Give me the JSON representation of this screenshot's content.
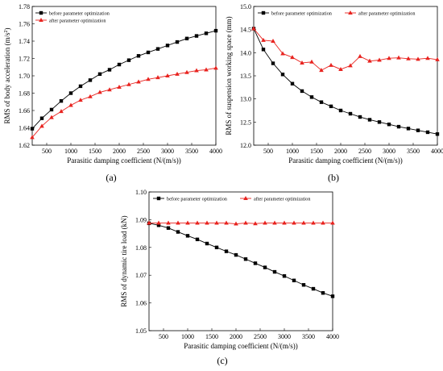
{
  "chart_data": [
    {
      "type": "line",
      "panel_label": "(a)",
      "xlabel": "Parasitic damping coefficient (N/(m/s))",
      "ylabel_main": "RMS of body acceleration (m/s",
      "ylabel_sup": "2",
      "ylabel_tail": ")",
      "xlim": [
        200,
        4000
      ],
      "ylim": [
        1.62,
        1.78
      ],
      "xticks": [
        500,
        1000,
        1500,
        2000,
        2500,
        3000,
        3500,
        4000
      ],
      "yticks": [
        "1.62",
        "1.64",
        "1.66",
        "1.68",
        "1.70",
        "1.72",
        "1.74",
        "1.76",
        "1.78"
      ],
      "ytick_values": [
        1.62,
        1.64,
        1.66,
        1.68,
        1.7,
        1.72,
        1.74,
        1.76,
        1.78
      ],
      "legend": "top-left",
      "grid": false,
      "x": [
        200,
        400,
        600,
        800,
        1000,
        1200,
        1400,
        1600,
        1800,
        2000,
        2200,
        2400,
        2600,
        2800,
        3000,
        3200,
        3400,
        3600,
        3800,
        4000
      ],
      "series": [
        {
          "name": "before parameter optimization",
          "color": "#000000",
          "marker": "square",
          "values": [
            1.639,
            1.651,
            1.661,
            1.671,
            1.68,
            1.688,
            1.695,
            1.702,
            1.707,
            1.713,
            1.718,
            1.723,
            1.727,
            1.731,
            1.735,
            1.739,
            1.743,
            1.746,
            1.749,
            1.752
          ]
        },
        {
          "name": "after parameter optimization",
          "color": "#e8231f",
          "marker": "triangle",
          "values": [
            1.629,
            1.642,
            1.652,
            1.659,
            1.666,
            1.672,
            1.676,
            1.681,
            1.684,
            1.687,
            1.69,
            1.693,
            1.696,
            1.698,
            1.7,
            1.702,
            1.704,
            1.706,
            1.707,
            1.709
          ]
        }
      ]
    },
    {
      "type": "line",
      "panel_label": "(b)",
      "xlabel": "Parasitic damping coefficient (N/(m/s))",
      "ylabel_main": "RMS of suspension working space (mm)",
      "ylabel_sup": "",
      "ylabel_tail": "",
      "xlim": [
        200,
        4000
      ],
      "ylim": [
        12.0,
        15.0
      ],
      "xticks": [
        500,
        1000,
        1500,
        2000,
        2500,
        3000,
        3500,
        4000
      ],
      "yticks": [
        "12.0",
        "12.5",
        "13.0",
        "13.5",
        "14.0",
        "14.5",
        "15.0"
      ],
      "ytick_values": [
        12.0,
        12.5,
        13.0,
        13.5,
        14.0,
        14.5,
        15.0
      ],
      "legend": "top",
      "grid": false,
      "x": [
        200,
        400,
        600,
        800,
        1000,
        1200,
        1400,
        1600,
        1800,
        2000,
        2200,
        2400,
        2600,
        2800,
        3000,
        3200,
        3400,
        3600,
        3800,
        4000
      ],
      "series": [
        {
          "name": "before parameter optimization",
          "color": "#000000",
          "marker": "square",
          "values": [
            14.52,
            14.07,
            13.77,
            13.53,
            13.33,
            13.17,
            13.04,
            12.93,
            12.84,
            12.75,
            12.68,
            12.61,
            12.55,
            12.5,
            12.45,
            12.4,
            12.36,
            12.32,
            12.28,
            12.24
          ]
        },
        {
          "name": "after parameter optimization",
          "color": "#e8231f",
          "marker": "triangle",
          "values": [
            14.52,
            14.27,
            14.25,
            13.98,
            13.9,
            13.78,
            13.8,
            13.62,
            13.73,
            13.64,
            13.72,
            13.92,
            13.82,
            13.84,
            13.88,
            13.89,
            13.87,
            13.86,
            13.88,
            13.85
          ]
        }
      ]
    },
    {
      "type": "line",
      "panel_label": "(c)",
      "xlabel": "Parasitic damping coefficient (N/(m/s))",
      "ylabel_main": "RMS of dynamic tire load (kN)",
      "ylabel_sup": "",
      "ylabel_tail": "",
      "xlim": [
        200,
        4000
      ],
      "ylim": [
        1.05,
        1.1
      ],
      "xticks": [
        500,
        1000,
        1500,
        2000,
        2500,
        3000,
        3500,
        4000
      ],
      "yticks": [
        "1.05",
        "1.06",
        "1.07",
        "1.08",
        "1.09",
        "1.10"
      ],
      "ytick_values": [
        1.05,
        1.06,
        1.07,
        1.08,
        1.09,
        1.1
      ],
      "legend": "top",
      "grid": false,
      "x": [
        200,
        400,
        600,
        800,
        1000,
        1200,
        1400,
        1600,
        1800,
        2000,
        2200,
        2400,
        2600,
        2800,
        3000,
        3200,
        3400,
        3600,
        3800,
        4000
      ],
      "series": [
        {
          "name": "before parameter optimization",
          "color": "#000000",
          "marker": "square",
          "values": [
            1.0887,
            1.088,
            1.087,
            1.0856,
            1.0842,
            1.0829,
            1.0814,
            1.08,
            1.0786,
            1.0773,
            1.0758,
            1.0743,
            1.0728,
            1.0712,
            1.0697,
            1.0681,
            1.0665,
            1.0651,
            1.0636,
            1.0624
          ]
        },
        {
          "name": "after parameter optimization",
          "color": "#e8231f",
          "marker": "triangle",
          "values": [
            1.0888,
            1.0888,
            1.0888,
            1.0888,
            1.0888,
            1.0888,
            1.0888,
            1.0888,
            1.0888,
            1.0885,
            1.0888,
            1.0886,
            1.0888,
            1.0888,
            1.0888,
            1.0888,
            1.0888,
            1.0888,
            1.0888,
            1.0888
          ]
        }
      ]
    }
  ]
}
